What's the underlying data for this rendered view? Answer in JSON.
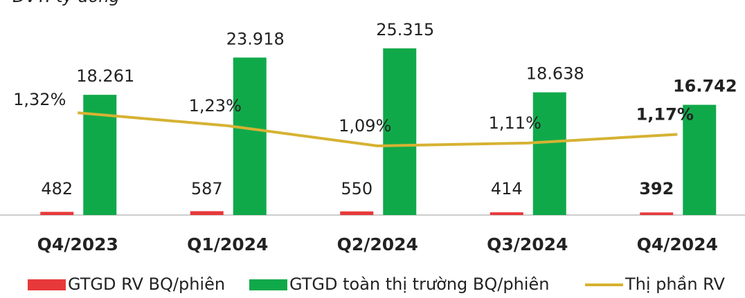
{
  "chart_data": {
    "type": "bar",
    "subtitle": "ĐVT: tỷ đồng",
    "categories": [
      "Q4/2023",
      "Q1/2024",
      "Q2/2024",
      "Q3/2024",
      "Q4/2024"
    ],
    "series": [
      {
        "name": "GTGD RV BQ/phiên",
        "color": "#e8393a",
        "values": [
          482,
          587,
          550,
          414,
          392
        ]
      },
      {
        "name": "GTGD toàn thị trường BQ/phiên",
        "color": "#10a94a",
        "values": [
          18261,
          23918,
          25315,
          18638,
          16742
        ],
        "value_labels": [
          "18.261",
          "23.918",
          "25.315",
          "18.638",
          "16.742"
        ]
      },
      {
        "name": "Thị phần RV",
        "type": "line",
        "axis": "y2",
        "color": "#d6b232",
        "values": [
          1.32,
          1.23,
          1.09,
          1.11,
          1.17
        ],
        "value_labels": [
          "1,32%",
          "1,23%",
          "1,09%",
          "1,11%",
          "1,17%"
        ]
      }
    ],
    "ylim": [
      0,
      28000
    ],
    "y2lim": [
      0.61,
      1.89
    ]
  }
}
